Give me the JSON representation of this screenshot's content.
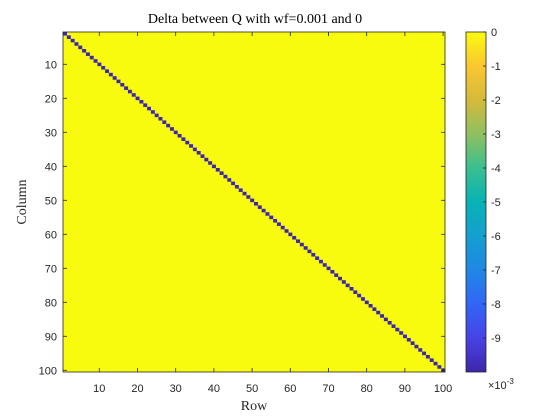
{
  "chart_data": {
    "type": "heatmap",
    "title": "Delta between Q with wf=0.001 and 0",
    "xlabel": "Row",
    "ylabel": "Column",
    "n": 100,
    "x_ticks": [
      10,
      20,
      30,
      40,
      50,
      60,
      70,
      80,
      90,
      100
    ],
    "y_ticks": [
      10,
      20,
      30,
      40,
      50,
      60,
      70,
      80,
      90,
      100
    ],
    "values": {
      "off_diagonal": 0,
      "diagonal": -0.01
    },
    "colorbar": {
      "min": -0.01,
      "max": 0,
      "ticks": [
        0,
        -1,
        -2,
        -3,
        -4,
        -5,
        -6,
        -7,
        -8,
        -9
      ],
      "tick_labels": [
        "0",
        "-1",
        "-2",
        "-3",
        "-4",
        "-5",
        "-6",
        "-7",
        "-8",
        "-9"
      ],
      "exponent_base": "×10",
      "exponent_power": "-3",
      "colormap": "parula",
      "colormap_stops": [
        {
          "v": 0.0,
          "color": "#3e26a8"
        },
        {
          "v": 0.1,
          "color": "#4743e6"
        },
        {
          "v": 0.2,
          "color": "#3266f5"
        },
        {
          "v": 0.3,
          "color": "#1f88e4"
        },
        {
          "v": 0.4,
          "color": "#149fd0"
        },
        {
          "v": 0.5,
          "color": "#07b3b6"
        },
        {
          "v": 0.6,
          "color": "#3abf8f"
        },
        {
          "v": 0.7,
          "color": "#8fc060"
        },
        {
          "v": 0.8,
          "color": "#d5ba3b"
        },
        {
          "v": 0.9,
          "color": "#fbc730"
        },
        {
          "v": 1.0,
          "color": "#f9fb0e"
        }
      ]
    }
  }
}
